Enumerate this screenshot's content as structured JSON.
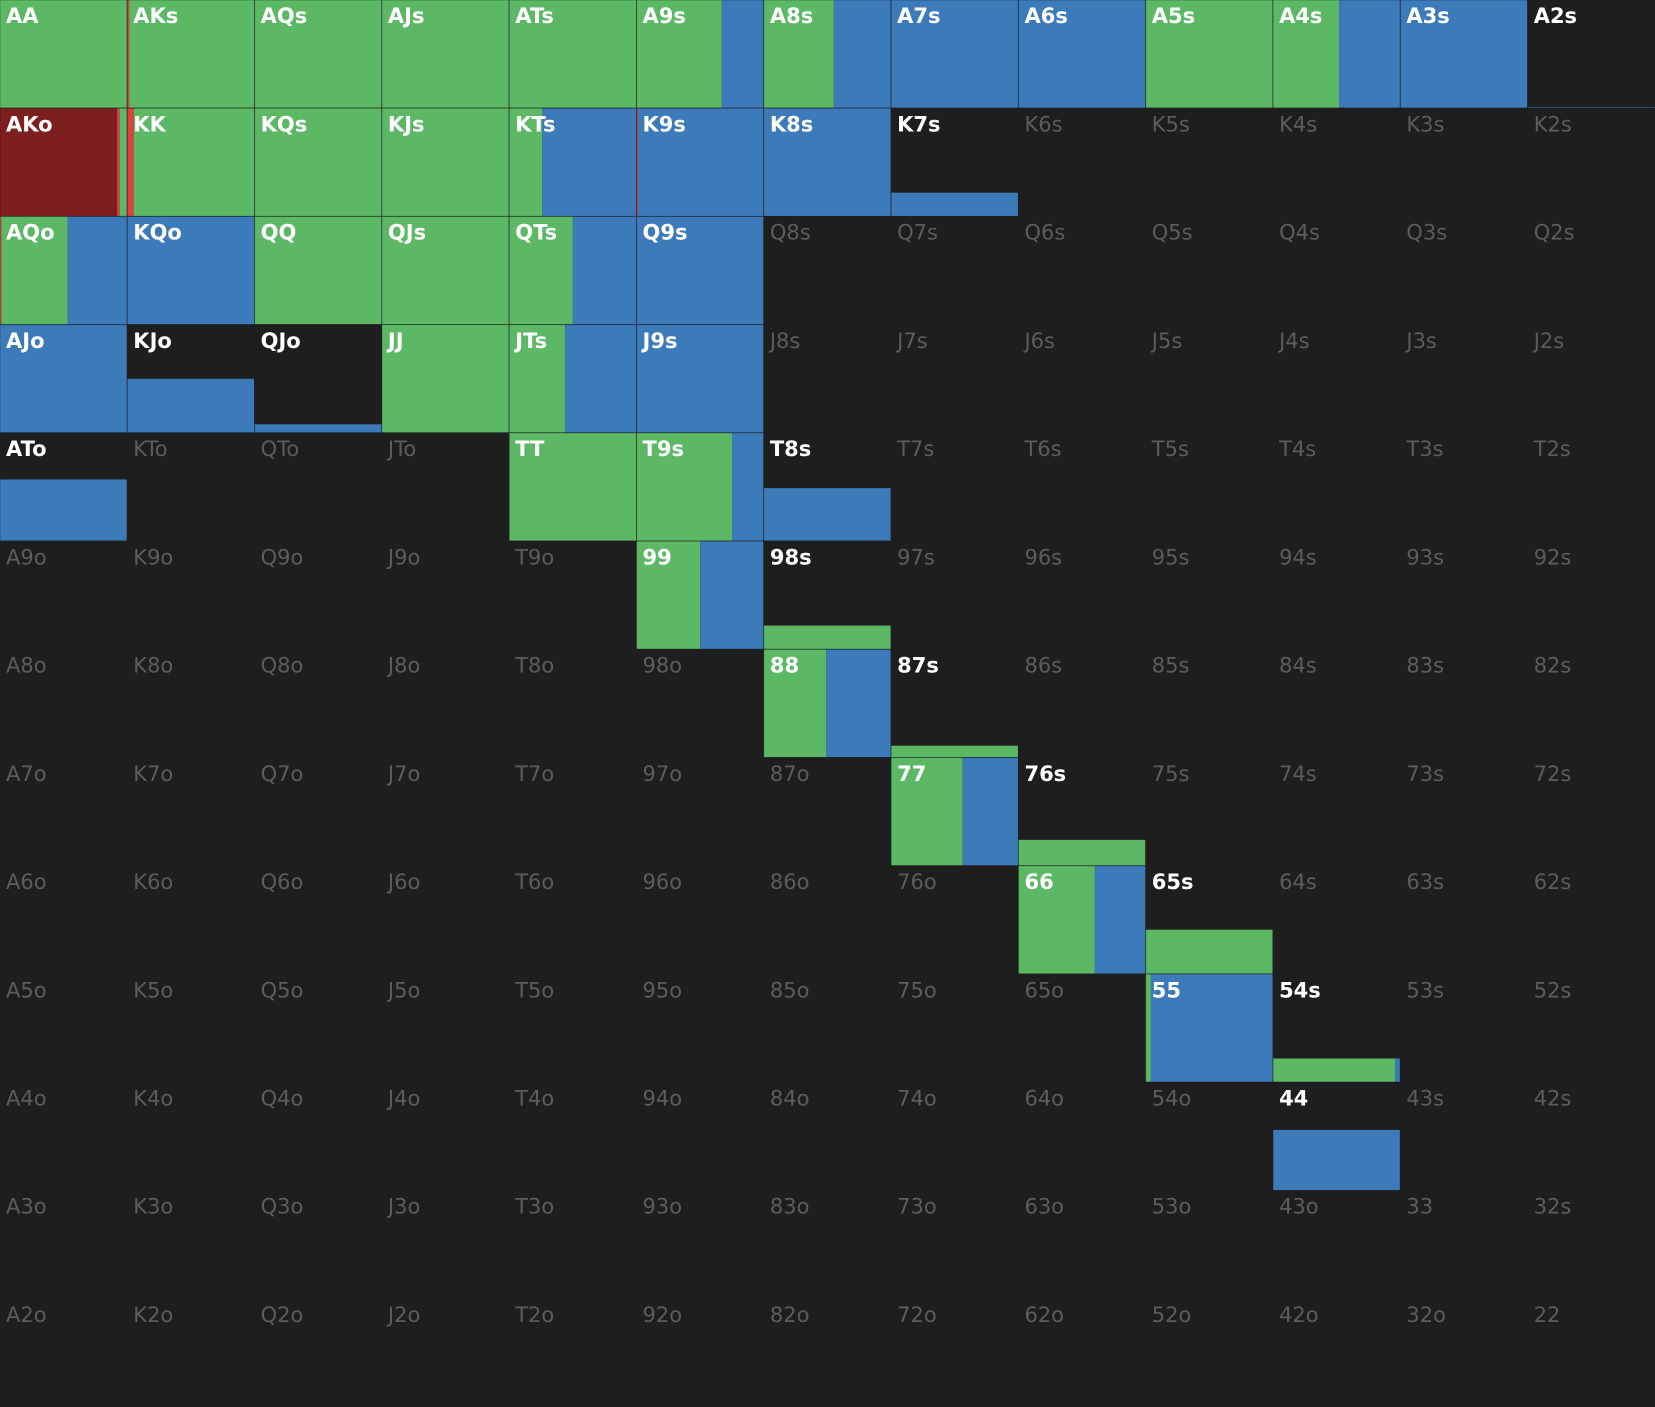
{
  "colors": [
    "#7e1f1f",
    "#e0413d",
    "#5cb865",
    "#3d7aba"
  ],
  "grid": [
    [
      {
        "label": "AA",
        "weight": 1,
        "mix": [
          0,
          0,
          1,
          0
        ]
      },
      {
        "label": "AKs",
        "weight": 1,
        "mix": [
          0,
          0.015,
          0.985,
          0
        ]
      },
      {
        "label": "AQs",
        "weight": 1,
        "mix": [
          0,
          0,
          1,
          0
        ]
      },
      {
        "label": "AJs",
        "weight": 1,
        "mix": [
          0,
          0,
          1,
          0
        ]
      },
      {
        "label": "ATs",
        "weight": 1,
        "mix": [
          0,
          0,
          1,
          0
        ]
      },
      {
        "label": "A9s",
        "weight": 1,
        "mix": [
          0,
          0,
          0.67,
          0.33
        ]
      },
      {
        "label": "A8s",
        "weight": 1,
        "mix": [
          0,
          0,
          0.55,
          0.45
        ]
      },
      {
        "label": "A7s",
        "weight": 1,
        "mix": [
          0,
          0,
          0,
          1
        ]
      },
      {
        "label": "A6s",
        "weight": 1,
        "mix": [
          0,
          0,
          0,
          1
        ]
      },
      {
        "label": "A5s",
        "weight": 1,
        "mix": [
          0,
          0,
          1,
          0
        ]
      },
      {
        "label": "A4s",
        "weight": 1,
        "mix": [
          0,
          0,
          0.52,
          0.48
        ]
      },
      {
        "label": "A3s",
        "weight": 1,
        "mix": [
          0,
          0,
          0,
          1
        ]
      },
      {
        "label": "A2s",
        "weight": 0.01,
        "mix": [
          0,
          0,
          0,
          1
        ]
      }
    ],
    [
      {
        "label": "AKo",
        "weight": 1,
        "mix": [
          0.92,
          0.02,
          0.06,
          0
        ]
      },
      {
        "label": "KK",
        "weight": 1,
        "mix": [
          0,
          0.05,
          0.95,
          0
        ]
      },
      {
        "label": "KQs",
        "weight": 1,
        "mix": [
          0,
          0,
          1,
          0
        ]
      },
      {
        "label": "KJs",
        "weight": 1,
        "mix": [
          0,
          0,
          1,
          0
        ]
      },
      {
        "label": "KTs",
        "weight": 1,
        "mix": [
          0,
          0,
          0.26,
          0.74
        ]
      },
      {
        "label": "K9s",
        "weight": 1,
        "mix": [
          0,
          0.01,
          0,
          0.99
        ]
      },
      {
        "label": "K8s",
        "weight": 1,
        "mix": [
          0,
          0,
          0,
          1
        ]
      },
      {
        "label": "K7s",
        "weight": 0.22,
        "mix": [
          0,
          0,
          0,
          1
        ]
      },
      {
        "label": "K6s",
        "weight": 0
      },
      {
        "label": "K5s",
        "weight": 0
      },
      {
        "label": "K4s",
        "weight": 0
      },
      {
        "label": "K3s",
        "weight": 0
      },
      {
        "label": "K2s",
        "weight": 0
      }
    ],
    [
      {
        "label": "AQo",
        "weight": 1,
        "mix": [
          0,
          0.01,
          0.52,
          0.47
        ]
      },
      {
        "label": "KQo",
        "weight": 1,
        "mix": [
          0,
          0,
          0,
          1
        ]
      },
      {
        "label": "QQ",
        "weight": 1,
        "mix": [
          0,
          0,
          1,
          0
        ]
      },
      {
        "label": "QJs",
        "weight": 1,
        "mix": [
          0,
          0,
          1,
          0
        ]
      },
      {
        "label": "QTs",
        "weight": 1,
        "mix": [
          0,
          0,
          0.5,
          0.5
        ]
      },
      {
        "label": "Q9s",
        "weight": 1,
        "mix": [
          0,
          0,
          0,
          1
        ]
      },
      {
        "label": "Q8s",
        "weight": 0
      },
      {
        "label": "Q7s",
        "weight": 0
      },
      {
        "label": "Q6s",
        "weight": 0
      },
      {
        "label": "Q5s",
        "weight": 0
      },
      {
        "label": "Q4s",
        "weight": 0
      },
      {
        "label": "Q3s",
        "weight": 0
      },
      {
        "label": "Q2s",
        "weight": 0
      }
    ],
    [
      {
        "label": "AJo",
        "weight": 1,
        "mix": [
          0,
          0,
          0,
          1
        ]
      },
      {
        "label": "KJo",
        "weight": 0.5,
        "mix": [
          0,
          0,
          0,
          1
        ]
      },
      {
        "label": "QJo",
        "weight": 0.08,
        "mix": [
          0,
          0,
          0,
          1
        ]
      },
      {
        "label": "JJ",
        "weight": 1,
        "mix": [
          0,
          0,
          1,
          0
        ]
      },
      {
        "label": "JTs",
        "weight": 1,
        "mix": [
          0,
          0,
          0.44,
          0.56
        ]
      },
      {
        "label": "J9s",
        "weight": 1,
        "mix": [
          0,
          0,
          0,
          1
        ]
      },
      {
        "label": "J8s",
        "weight": 0
      },
      {
        "label": "J7s",
        "weight": 0
      },
      {
        "label": "J6s",
        "weight": 0
      },
      {
        "label": "J5s",
        "weight": 0
      },
      {
        "label": "J4s",
        "weight": 0
      },
      {
        "label": "J3s",
        "weight": 0
      },
      {
        "label": "J2s",
        "weight": 0
      }
    ],
    [
      {
        "label": "ATo",
        "weight": 0.57,
        "mix": [
          0,
          0,
          0,
          1
        ]
      },
      {
        "label": "KTo",
        "weight": 0
      },
      {
        "label": "QTo",
        "weight": 0
      },
      {
        "label": "JTo",
        "weight": 0
      },
      {
        "label": "TT",
        "weight": 1,
        "mix": [
          0,
          0,
          1,
          0
        ]
      },
      {
        "label": "T9s",
        "weight": 1,
        "mix": [
          0,
          0,
          0.75,
          0.25
        ]
      },
      {
        "label": "T8s",
        "weight": 0.49,
        "mix": [
          0,
          0,
          0,
          1
        ]
      },
      {
        "label": "T7s",
        "weight": 0
      },
      {
        "label": "T6s",
        "weight": 0
      },
      {
        "label": "T5s",
        "weight": 0
      },
      {
        "label": "T4s",
        "weight": 0
      },
      {
        "label": "T3s",
        "weight": 0
      },
      {
        "label": "T2s",
        "weight": 0
      }
    ],
    [
      {
        "label": "A9o",
        "weight": 0
      },
      {
        "label": "K9o",
        "weight": 0
      },
      {
        "label": "Q9o",
        "weight": 0
      },
      {
        "label": "J9o",
        "weight": 0
      },
      {
        "label": "T9o",
        "weight": 0
      },
      {
        "label": "99",
        "weight": 1,
        "mix": [
          0,
          0,
          0.5,
          0.5
        ]
      },
      {
        "label": "98s",
        "weight": 0.22,
        "mix": [
          0,
          0,
          1,
          0
        ]
      },
      {
        "label": "97s",
        "weight": 0
      },
      {
        "label": "96s",
        "weight": 0
      },
      {
        "label": "95s",
        "weight": 0
      },
      {
        "label": "94s",
        "weight": 0
      },
      {
        "label": "93s",
        "weight": 0
      },
      {
        "label": "92s",
        "weight": 0
      }
    ],
    [
      {
        "label": "A8o",
        "weight": 0
      },
      {
        "label": "K8o",
        "weight": 0
      },
      {
        "label": "Q8o",
        "weight": 0
      },
      {
        "label": "J8o",
        "weight": 0
      },
      {
        "label": "T8o",
        "weight": 0
      },
      {
        "label": "98o",
        "weight": 0
      },
      {
        "label": "88",
        "weight": 1,
        "mix": [
          0,
          0,
          0.49,
          0.51
        ]
      },
      {
        "label": "87s",
        "weight": 0.11,
        "mix": [
          0,
          0,
          1,
          0
        ]
      },
      {
        "label": "86s",
        "weight": 0
      },
      {
        "label": "85s",
        "weight": 0
      },
      {
        "label": "84s",
        "weight": 0
      },
      {
        "label": "83s",
        "weight": 0
      },
      {
        "label": "82s",
        "weight": 0
      }
    ],
    [
      {
        "label": "A7o",
        "weight": 0
      },
      {
        "label": "K7o",
        "weight": 0
      },
      {
        "label": "Q7o",
        "weight": 0
      },
      {
        "label": "J7o",
        "weight": 0
      },
      {
        "label": "T7o",
        "weight": 0
      },
      {
        "label": "97o",
        "weight": 0
      },
      {
        "label": "87o",
        "weight": 0
      },
      {
        "label": "77",
        "weight": 1,
        "mix": [
          0,
          0,
          0.56,
          0.44
        ]
      },
      {
        "label": "76s",
        "weight": 0.24,
        "mix": [
          0,
          0,
          1,
          0
        ]
      },
      {
        "label": "75s",
        "weight": 0
      },
      {
        "label": "74s",
        "weight": 0
      },
      {
        "label": "73s",
        "weight": 0
      },
      {
        "label": "72s",
        "weight": 0
      }
    ],
    [
      {
        "label": "A6o",
        "weight": 0
      },
      {
        "label": "K6o",
        "weight": 0
      },
      {
        "label": "Q6o",
        "weight": 0
      },
      {
        "label": "J6o",
        "weight": 0
      },
      {
        "label": "T6o",
        "weight": 0
      },
      {
        "label": "96o",
        "weight": 0
      },
      {
        "label": "86o",
        "weight": 0
      },
      {
        "label": "76o",
        "weight": 0
      },
      {
        "label": "66",
        "weight": 1,
        "mix": [
          0,
          0,
          0.6,
          0.4
        ]
      },
      {
        "label": "65s",
        "weight": 0.41,
        "mix": [
          0,
          0,
          1,
          0
        ]
      },
      {
        "label": "64s",
        "weight": 0
      },
      {
        "label": "63s",
        "weight": 0
      },
      {
        "label": "62s",
        "weight": 0
      }
    ],
    [
      {
        "label": "A5o",
        "weight": 0
      },
      {
        "label": "K5o",
        "weight": 0
      },
      {
        "label": "Q5o",
        "weight": 0
      },
      {
        "label": "J5o",
        "weight": 0
      },
      {
        "label": "T5o",
        "weight": 0
      },
      {
        "label": "95o",
        "weight": 0
      },
      {
        "label": "85o",
        "weight": 0
      },
      {
        "label": "75o",
        "weight": 0
      },
      {
        "label": "65o",
        "weight": 0
      },
      {
        "label": "55",
        "weight": 1,
        "mix": [
          0,
          0,
          0.04,
          0.96
        ]
      },
      {
        "label": "54s",
        "weight": 0.22,
        "mix": [
          0,
          0,
          0.96,
          0.04
        ]
      },
      {
        "label": "53s",
        "weight": 0
      },
      {
        "label": "52s",
        "weight": 0
      }
    ],
    [
      {
        "label": "A4o",
        "weight": 0
      },
      {
        "label": "K4o",
        "weight": 0
      },
      {
        "label": "Q4o",
        "weight": 0
      },
      {
        "label": "J4o",
        "weight": 0
      },
      {
        "label": "T4o",
        "weight": 0
      },
      {
        "label": "94o",
        "weight": 0
      },
      {
        "label": "84o",
        "weight": 0
      },
      {
        "label": "74o",
        "weight": 0
      },
      {
        "label": "64o",
        "weight": 0
      },
      {
        "label": "54o",
        "weight": 0
      },
      {
        "label": "44",
        "weight": 0.56,
        "mix": [
          0,
          0,
          0,
          1
        ]
      },
      {
        "label": "43s",
        "weight": 0
      },
      {
        "label": "42s",
        "weight": 0
      }
    ],
    [
      {
        "label": "A3o",
        "weight": 0
      },
      {
        "label": "K3o",
        "weight": 0
      },
      {
        "label": "Q3o",
        "weight": 0
      },
      {
        "label": "J3o",
        "weight": 0
      },
      {
        "label": "T3o",
        "weight": 0
      },
      {
        "label": "93o",
        "weight": 0
      },
      {
        "label": "83o",
        "weight": 0
      },
      {
        "label": "73o",
        "weight": 0
      },
      {
        "label": "63o",
        "weight": 0
      },
      {
        "label": "53o",
        "weight": 0
      },
      {
        "label": "43o",
        "weight": 0
      },
      {
        "label": "33",
        "weight": 0
      },
      {
        "label": "32s",
        "weight": 0
      }
    ],
    [
      {
        "label": "A2o",
        "weight": 0
      },
      {
        "label": "K2o",
        "weight": 0
      },
      {
        "label": "Q2o",
        "weight": 0
      },
      {
        "label": "J2o",
        "weight": 0
      },
      {
        "label": "T2o",
        "weight": 0
      },
      {
        "label": "92o",
        "weight": 0
      },
      {
        "label": "82o",
        "weight": 0
      },
      {
        "label": "72o",
        "weight": 0
      },
      {
        "label": "62o",
        "weight": 0
      },
      {
        "label": "52o",
        "weight": 0
      },
      {
        "label": "42o",
        "weight": 0
      },
      {
        "label": "32o",
        "weight": 0
      },
      {
        "label": "22",
        "weight": 0
      }
    ]
  ]
}
